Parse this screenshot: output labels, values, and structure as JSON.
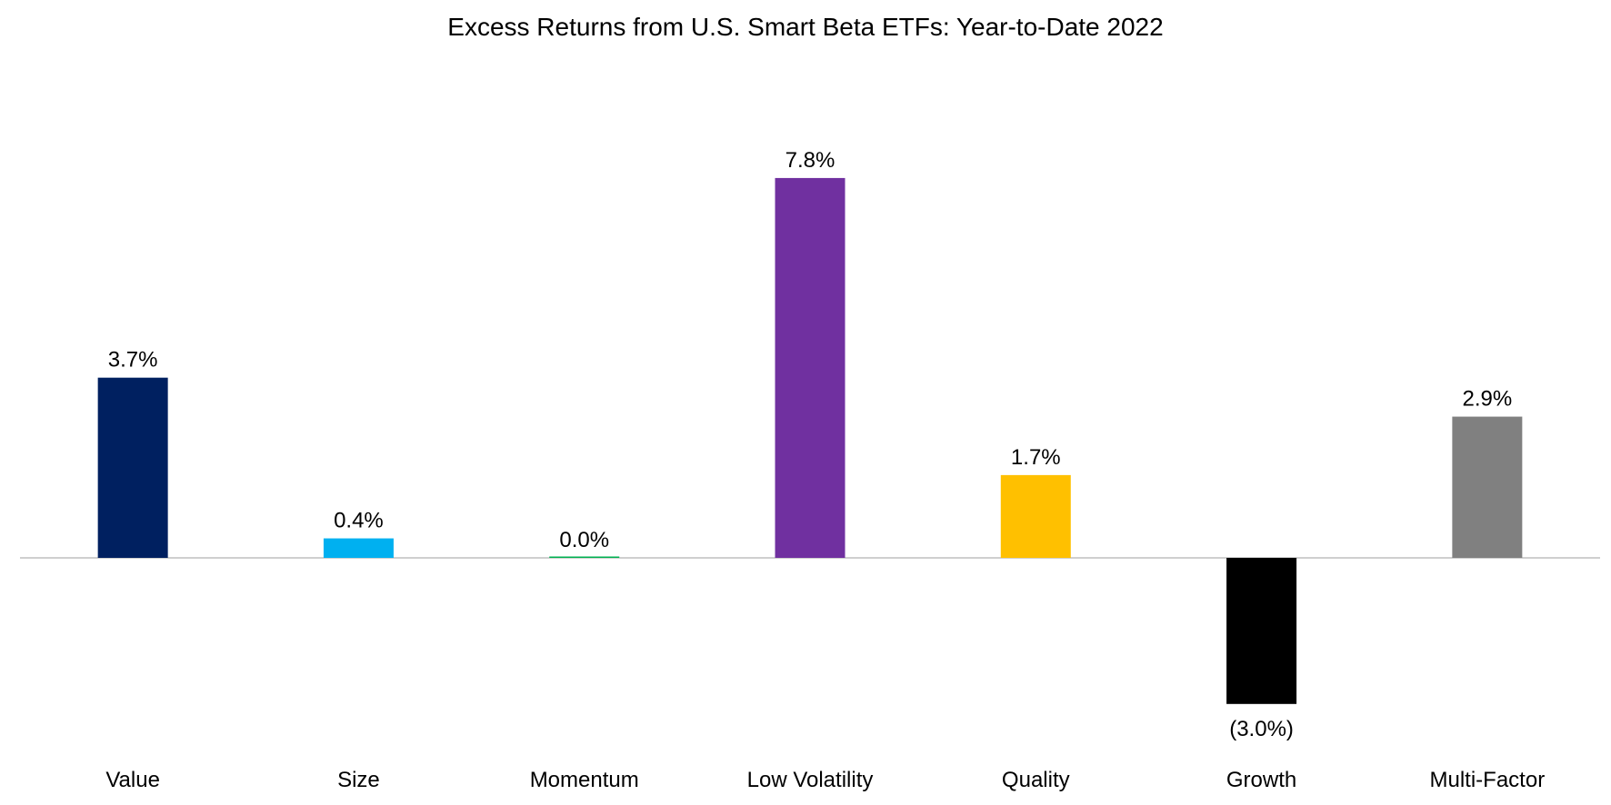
{
  "chart_data": {
    "type": "bar",
    "title": "Excess Returns from U.S. Smart Beta ETFs: Year-to-Date 2022",
    "xlabel": "",
    "ylabel": "",
    "categories": [
      "Value",
      "Size",
      "Momentum",
      "Low Volatility",
      "Quality",
      "Growth",
      "Multi-Factor"
    ],
    "values": [
      3.7,
      0.4,
      0.0,
      7.8,
      1.7,
      -3.0,
      2.9
    ],
    "data_labels": [
      "3.7%",
      "0.4%",
      "0.0%",
      "7.8%",
      "1.7%",
      "(3.0%)",
      "2.9%"
    ],
    "colors": [
      "#002060",
      "#00B0F0",
      "#00B050",
      "#7030A0",
      "#FFC000",
      "#000000",
      "#808080"
    ],
    "ylim": [
      -3.8,
      8.7
    ],
    "grid": false,
    "legend": "none",
    "zero_line_color": "#BFBFBF"
  }
}
